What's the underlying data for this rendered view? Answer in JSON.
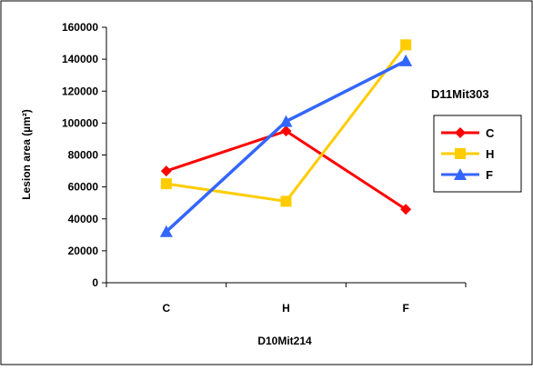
{
  "chart_data": {
    "type": "line",
    "xlabel": "D10Mit214",
    "ylabel": "Lesion area (µm²)",
    "categories": [
      "C",
      "H",
      "F"
    ],
    "ylim": [
      0,
      160000
    ],
    "yticks": [
      0,
      20000,
      40000,
      60000,
      80000,
      100000,
      120000,
      140000,
      160000
    ],
    "yticks_labels": [
      "0",
      "20000",
      "40000",
      "60000",
      "80000",
      "100000",
      "120000",
      "140000",
      "160000"
    ],
    "grid": false,
    "legend_title": "D11Mit303",
    "legend_position": "right",
    "series": [
      {
        "name": "C",
        "values": [
          70000,
          95000,
          46000
        ],
        "color": "#ff0000",
        "marker": "diamond"
      },
      {
        "name": "H",
        "values": [
          62000,
          51000,
          149000
        ],
        "color": "#ffcc00",
        "marker": "square"
      },
      {
        "name": "F",
        "values": [
          32000,
          101000,
          139000
        ],
        "color": "#3366ff",
        "marker": "triangle"
      }
    ]
  }
}
